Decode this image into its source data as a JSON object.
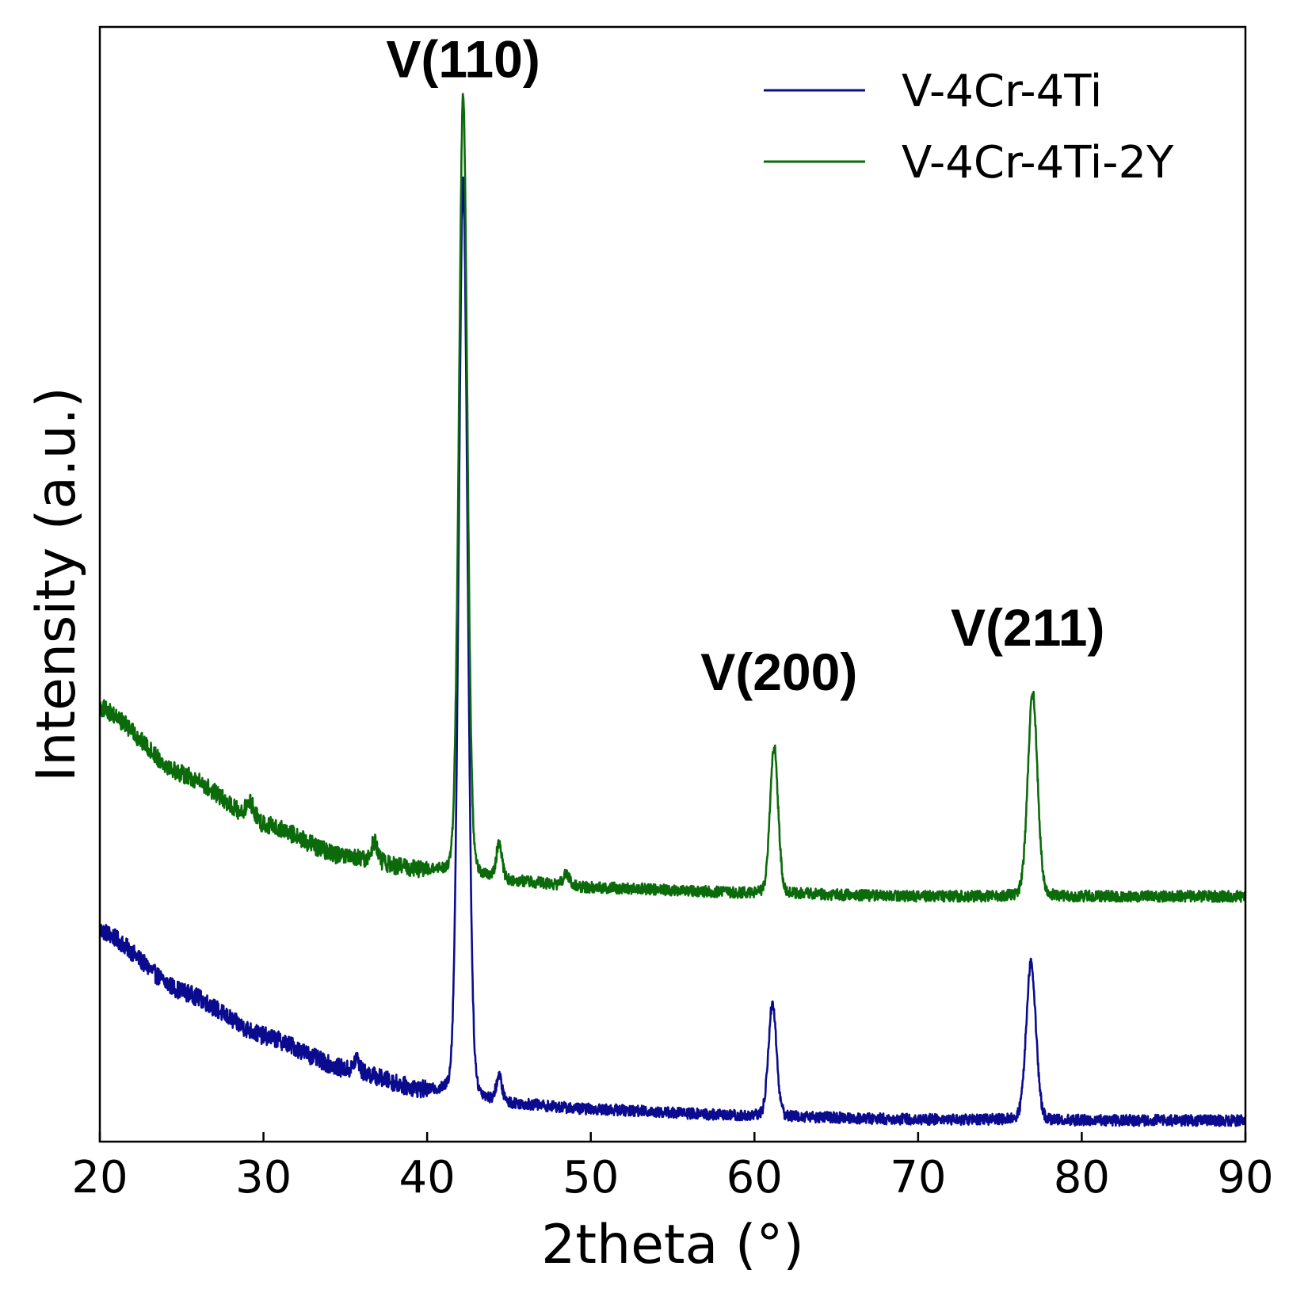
{
  "chart_data": {
    "type": "line",
    "title": "",
    "xlabel": "2theta (°)",
    "ylabel": "Intensity (a.u.)",
    "xlim": [
      20,
      90
    ],
    "ylim": [
      0,
      100
    ],
    "xticks": [
      20,
      30,
      40,
      50,
      60,
      70,
      80,
      90
    ],
    "ytick_labels_shown": false,
    "grid": false,
    "legend_position": "top-right",
    "series": [
      {
        "name": "V-4Cr-4Ti",
        "color": "#0b0b8f",
        "baseline": [
          [
            20,
            19
          ],
          [
            25,
            13.5
          ],
          [
            30,
            9.5
          ],
          [
            35,
            6.5
          ],
          [
            40,
            4.5
          ],
          [
            45,
            3.4
          ],
          [
            50,
            2.9
          ],
          [
            60,
            2.3
          ],
          [
            70,
            2.0
          ],
          [
            80,
            1.9
          ],
          [
            90,
            1.9
          ]
        ],
        "peaks": [
          {
            "x": 42.2,
            "height": 82.0,
            "width": 0.28
          },
          {
            "x": 44.4,
            "height": 2.2,
            "width": 0.18
          },
          {
            "x": 35.7,
            "height": 1.2,
            "width": 0.15
          },
          {
            "x": 61.1,
            "height": 10.2,
            "width": 0.25
          },
          {
            "x": 76.9,
            "height": 14.2,
            "width": 0.3
          }
        ],
        "noise_amplitude": 0.5
      },
      {
        "name": "V-4Cr-4Ti-2Y",
        "color": "#0b6b0b",
        "baseline": [
          [
            20,
            39
          ],
          [
            25,
            33
          ],
          [
            30,
            28.5
          ],
          [
            35,
            25.5
          ],
          [
            40,
            24.3
          ],
          [
            45,
            23.4
          ],
          [
            50,
            22.8
          ],
          [
            60,
            22.3
          ],
          [
            70,
            22.0
          ],
          [
            80,
            22.0
          ],
          [
            90,
            22.0
          ]
        ],
        "peaks": [
          {
            "x": 42.2,
            "height": 70.0,
            "width": 0.26
          },
          {
            "x": 44.4,
            "height": 3.2,
            "width": 0.18
          },
          {
            "x": 36.8,
            "height": 1.8,
            "width": 0.2
          },
          {
            "x": 29.2,
            "height": 1.4,
            "width": 0.25
          },
          {
            "x": 48.5,
            "height": 1.0,
            "width": 0.2
          },
          {
            "x": 61.2,
            "height": 13.2,
            "width": 0.25
          },
          {
            "x": 77.0,
            "height": 18.3,
            "width": 0.3
          }
        ],
        "noise_amplitude": 0.5
      }
    ],
    "annotations": [
      {
        "text": "V(110)",
        "x": 42.2,
        "y": 95.5
      },
      {
        "text": "V(200)",
        "x": 61.5,
        "y": 40.5
      },
      {
        "text": "V(211)",
        "x": 76.7,
        "y": 44.5
      }
    ]
  }
}
